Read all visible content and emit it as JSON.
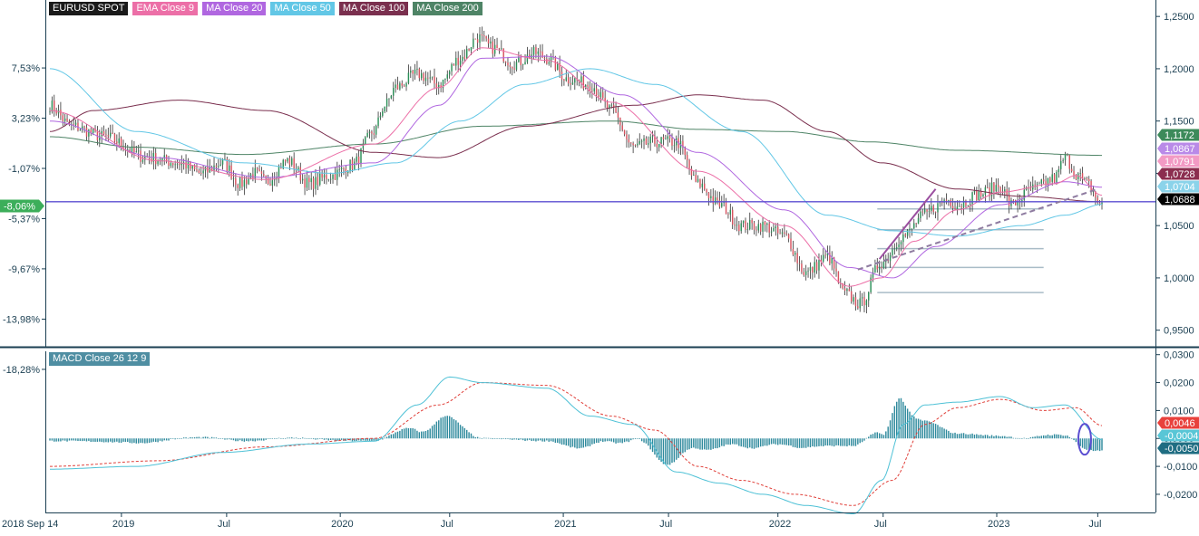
{
  "legend": [
    {
      "label": "EURUSD SPOT",
      "color": "#1a1a1a"
    },
    {
      "label": "EMA Close 9",
      "color": "#ec6fa7"
    },
    {
      "label": "MA Close 20",
      "color": "#b067e0"
    },
    {
      "label": "MA Close 50",
      "color": "#62c7e6"
    },
    {
      "label": "MA Close 100",
      "color": "#7a2f4e"
    },
    {
      "label": "MA Close 200",
      "color": "#4e8466"
    }
  ],
  "macd_label": "MACD Close 26 12 9",
  "chart_data": [
    {
      "type": "candlestick",
      "title": "EURUSD SPOT",
      "ylim": [
        0.935,
        1.264
      ],
      "right_ticks": [
        "1,2500",
        "1,2000",
        "1,1500",
        "1,1000",
        "1,0500",
        "1,0000",
        "0,9500"
      ],
      "left_ticks": [
        "7,53%",
        "3,23%",
        "-1,07%",
        "-5,37%",
        "-9,67%",
        "-13,98%",
        "-18,28%"
      ],
      "current_percent": "-8,06%",
      "horizontal_line": 1.0728,
      "price_tags": [
        {
          "label": "1,1172",
          "value": 1.1172,
          "color": "#3c8a5a"
        },
        {
          "label": "1,0867",
          "value": 1.0867,
          "color": "#b98ae8"
        },
        {
          "label": "1,0791",
          "value": 1.0791,
          "color": "#f29ac4"
        },
        {
          "label": "1,0728",
          "value": 1.0728,
          "color": "#8b2e4f"
        },
        {
          "label": "1,0704",
          "value": 1.0704,
          "color": "#8bd3ea"
        },
        {
          "label": "1,0688",
          "value": 1.0688,
          "color": "#000000"
        }
      ],
      "fib_levels": [
        1.066,
        1.046,
        1.028,
        1.01,
        0.986
      ],
      "x_labels": [
        "2018 Sep 14",
        "2019",
        "Jul",
        "2020",
        "Jul",
        "2021",
        "Jul",
        "2022",
        "Jul",
        "2023",
        "Jul"
      ],
      "close_anchors": [
        [
          0,
          1.165
        ],
        [
          10,
          1.145
        ],
        [
          25,
          1.135
        ],
        [
          45,
          1.115
        ],
        [
          60,
          1.11
        ],
        [
          70,
          1.1
        ],
        [
          80,
          1.11
        ],
        [
          88,
          1.09
        ],
        [
          95,
          1.1
        ],
        [
          100,
          1.092
        ],
        [
          110,
          1.112
        ],
        [
          120,
          1.09
        ],
        [
          130,
          1.098
        ],
        [
          140,
          1.108
        ],
        [
          150,
          1.14
        ],
        [
          155,
          1.165
        ],
        [
          160,
          1.182
        ],
        [
          170,
          1.195
        ],
        [
          180,
          1.185
        ],
        [
          190,
          1.21
        ],
        [
          198,
          1.23
        ],
        [
          205,
          1.22
        ],
        [
          215,
          1.205
        ],
        [
          225,
          1.215
        ],
        [
          230,
          1.21
        ],
        [
          240,
          1.19
        ],
        [
          250,
          1.185
        ],
        [
          260,
          1.16
        ],
        [
          270,
          1.125
        ],
        [
          280,
          1.13
        ],
        [
          290,
          1.13
        ],
        [
          300,
          1.09
        ],
        [
          310,
          1.07
        ],
        [
          320,
          1.05
        ],
        [
          330,
          1.05
        ],
        [
          340,
          1.04
        ],
        [
          350,
          1.005
        ],
        [
          360,
          1.02
        ],
        [
          368,
          0.985
        ],
        [
          375,
          0.975
        ],
        [
          385,
          1.015
        ],
        [
          395,
          1.04
        ],
        [
          405,
          1.06
        ],
        [
          410,
          1.068
        ],
        [
          415,
          1.075
        ],
        [
          420,
          1.07
        ],
        [
          430,
          1.08
        ],
        [
          440,
          1.088
        ],
        [
          445,
          1.07
        ],
        [
          455,
          1.085
        ],
        [
          465,
          1.095
        ],
        [
          470,
          1.115
        ],
        [
          475,
          1.1
        ],
        [
          480,
          1.09
        ],
        [
          487,
          1.069
        ]
      ],
      "ema9_anchors": [
        [
          0,
          1.16
        ],
        [
          50,
          1.112
        ],
        [
          100,
          1.094
        ],
        [
          150,
          1.128
        ],
        [
          180,
          1.182
        ],
        [
          200,
          1.22
        ],
        [
          230,
          1.208
        ],
        [
          260,
          1.168
        ],
        [
          300,
          1.102
        ],
        [
          340,
          1.05
        ],
        [
          370,
          0.992
        ],
        [
          385,
          1.0
        ],
        [
          400,
          1.035
        ],
        [
          420,
          1.065
        ],
        [
          440,
          1.082
        ],
        [
          465,
          1.09
        ],
        [
          475,
          1.098
        ],
        [
          487,
          1.079
        ]
      ],
      "ma20_anchors": [
        [
          0,
          1.15
        ],
        [
          50,
          1.115
        ],
        [
          100,
          1.096
        ],
        [
          150,
          1.11
        ],
        [
          180,
          1.165
        ],
        [
          200,
          1.21
        ],
        [
          230,
          1.212
        ],
        [
          265,
          1.175
        ],
        [
          300,
          1.12
        ],
        [
          340,
          1.065
        ],
        [
          370,
          1.01
        ],
        [
          390,
          1.0
        ],
        [
          410,
          1.03
        ],
        [
          440,
          1.07
        ],
        [
          470,
          1.092
        ],
        [
          487,
          1.0867
        ]
      ],
      "ma50_anchors": [
        [
          0,
          1.2
        ],
        [
          40,
          1.14
        ],
        [
          90,
          1.11
        ],
        [
          130,
          1.1
        ],
        [
          160,
          1.11
        ],
        [
          190,
          1.15
        ],
        [
          220,
          1.185
        ],
        [
          250,
          1.2
        ],
        [
          280,
          1.185
        ],
        [
          320,
          1.14
        ],
        [
          360,
          1.06
        ],
        [
          390,
          1.045
        ],
        [
          420,
          1.04
        ],
        [
          450,
          1.05
        ],
        [
          470,
          1.06
        ],
        [
          487,
          1.0704
        ]
      ],
      "ma100_anchors": [
        [
          0,
          1.14
        ],
        [
          20,
          1.16
        ],
        [
          60,
          1.17
        ],
        [
          100,
          1.16
        ],
        [
          150,
          1.12
        ],
        [
          180,
          1.115
        ],
        [
          220,
          1.145
        ],
        [
          270,
          1.165
        ],
        [
          300,
          1.175
        ],
        [
          330,
          1.17
        ],
        [
          360,
          1.14
        ],
        [
          385,
          1.11
        ],
        [
          420,
          1.085
        ],
        [
          450,
          1.078
        ],
        [
          487,
          1.0728
        ]
      ],
      "ma200_anchors": [
        [
          0,
          1.135
        ],
        [
          40,
          1.125
        ],
        [
          90,
          1.118
        ],
        [
          150,
          1.128
        ],
        [
          200,
          1.145
        ],
        [
          260,
          1.15
        ],
        [
          300,
          1.142
        ],
        [
          340,
          1.14
        ],
        [
          380,
          1.13
        ],
        [
          420,
          1.122
        ],
        [
          487,
          1.1172
        ]
      ]
    },
    {
      "type": "macd",
      "title": "MACD Close 26 12 9",
      "ylim": [
        -0.0265,
        0.0312
      ],
      "right_ticks": [
        "0,0300",
        "0,0200",
        "0,0100",
        "0,0000",
        "-0,0100",
        "-0,0200"
      ],
      "tick_values": [
        0.03,
        0.02,
        0.01,
        0,
        -0.01,
        -0.02
      ],
      "value_tags": [
        {
          "label": "0,0046",
          "value": 0.0046,
          "color": "#e8413c"
        },
        {
          "label": "-0,0004",
          "value": -0.0004,
          "color": "#58c6d6"
        },
        {
          "label": "-0,0050",
          "value": -0.005,
          "color": "#1f6d82"
        }
      ],
      "macd_anchors": [
        [
          0,
          -0.011
        ],
        [
          40,
          -0.01
        ],
        [
          80,
          -0.005
        ],
        [
          120,
          -0.002
        ],
        [
          150,
          -0.001
        ],
        [
          170,
          0.012
        ],
        [
          185,
          0.022
        ],
        [
          200,
          0.02
        ],
        [
          230,
          0.018
        ],
        [
          250,
          0.008
        ],
        [
          270,
          0.005
        ],
        [
          290,
          -0.012
        ],
        [
          310,
          -0.016
        ],
        [
          330,
          -0.02
        ],
        [
          350,
          -0.024
        ],
        [
          372,
          -0.027
        ],
        [
          385,
          -0.015
        ],
        [
          395,
          0.005
        ],
        [
          405,
          0.012
        ],
        [
          420,
          0.013
        ],
        [
          440,
          0.015
        ],
        [
          455,
          0.011
        ],
        [
          470,
          0.012
        ],
        [
          487,
          -0.0004
        ]
      ],
      "signal_anchors": [
        [
          0,
          -0.01
        ],
        [
          50,
          -0.008
        ],
        [
          100,
          -0.003
        ],
        [
          150,
          0.0
        ],
        [
          180,
          0.012
        ],
        [
          200,
          0.02
        ],
        [
          230,
          0.019
        ],
        [
          260,
          0.008
        ],
        [
          280,
          0.003
        ],
        [
          300,
          -0.01
        ],
        [
          320,
          -0.015
        ],
        [
          345,
          -0.02
        ],
        [
          372,
          -0.024
        ],
        [
          390,
          -0.015
        ],
        [
          405,
          0.005
        ],
        [
          420,
          0.011
        ],
        [
          440,
          0.014
        ],
        [
          460,
          0.01
        ],
        [
          475,
          0.011
        ],
        [
          487,
          0.0046
        ]
      ]
    }
  ]
}
